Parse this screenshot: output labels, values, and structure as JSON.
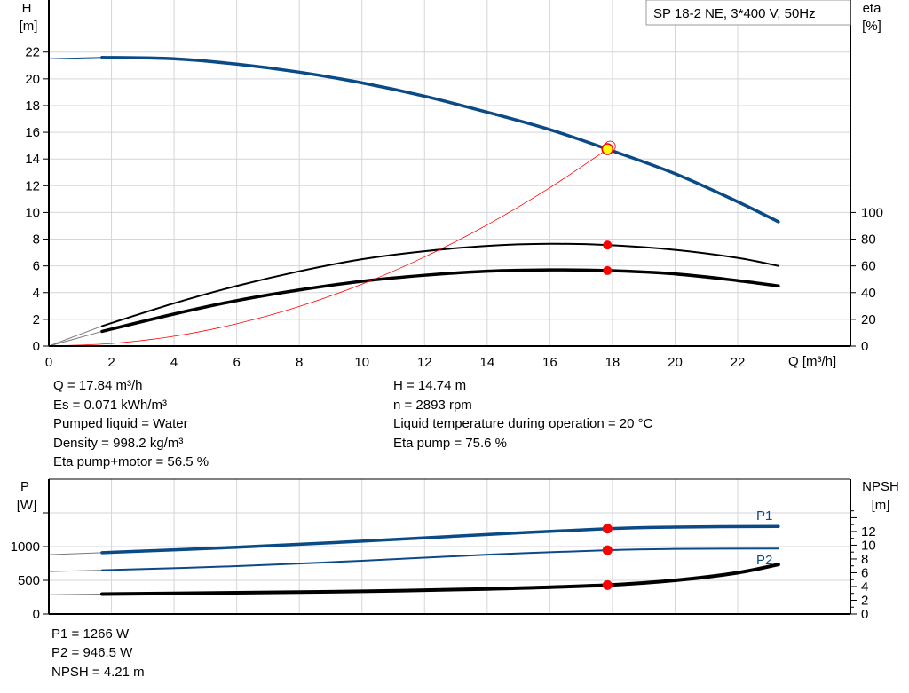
{
  "title": "SP 18-2 NE, 3*400 V, 50Hz",
  "colors": {
    "blue": "#0a4a86",
    "black": "#000000",
    "red": "#ff0000",
    "op_point": "#ffff00"
  },
  "chart_data": [
    {
      "type": "line",
      "ylabel_left": [
        "H",
        "[m]"
      ],
      "ylabel_right": [
        "eta",
        "[%]"
      ],
      "xlabel": "Q [m³/h]",
      "xlim": [
        0,
        25.6
      ],
      "ylim_left": [
        0,
        25.9
      ],
      "ylim_right_scale": "eta 0..100 maps to H 0..10",
      "x_ticks": [
        0,
        2,
        4,
        6,
        8,
        10,
        12,
        14,
        16,
        18,
        20,
        22
      ],
      "y_ticks_left": [
        0,
        2,
        4,
        6,
        8,
        10,
        12,
        14,
        16,
        18,
        20,
        22
      ],
      "y_ticks_right": [
        0,
        20,
        40,
        60,
        80,
        100
      ],
      "grid": true,
      "series": [
        {
          "key": "H",
          "axis": "left",
          "color": "#0a4a86",
          "x": [
            0,
            1.7,
            4,
            6,
            8,
            10,
            12,
            14,
            16,
            17.84,
            20,
            22,
            23.3
          ],
          "y": [
            21.5,
            21.6,
            21.5,
            21.1,
            20.5,
            19.7,
            18.7,
            17.5,
            16.2,
            14.74,
            12.9,
            10.8,
            9.3
          ]
        },
        {
          "key": "eta_pump",
          "axis": "right",
          "color": "#000000",
          "x": [
            0,
            1.7,
            4,
            6,
            8,
            10,
            12,
            14,
            16,
            17.84,
            20,
            22,
            23.3
          ],
          "y": [
            0,
            15,
            32,
            45,
            56,
            65,
            71,
            75,
            76.5,
            75.6,
            72,
            66,
            60
          ]
        },
        {
          "key": "eta_pump_motor",
          "axis": "right",
          "color": "#000000",
          "x": [
            0,
            1.7,
            4,
            6,
            8,
            10,
            12,
            14,
            16,
            17.84,
            20,
            22,
            23.3
          ],
          "y": [
            0,
            11,
            24,
            34,
            42,
            48.5,
            53,
            56,
            57,
            56.5,
            54,
            49,
            45
          ]
        },
        {
          "key": "system",
          "axis": "left",
          "color": "#ff0000",
          "x": [
            0,
            2,
            4,
            6,
            8,
            10,
            12,
            14,
            16,
            17.84
          ],
          "y": [
            0,
            0.19,
            0.74,
            1.67,
            2.96,
            4.63,
            6.67,
            9.07,
            11.85,
            14.74
          ]
        }
      ],
      "operating_point": {
        "q": 17.84,
        "h": 14.74,
        "eta_pump": 75.6,
        "eta_pump_motor": 56.5
      }
    },
    {
      "type": "line",
      "ylabel_left": [
        "P",
        "[W]"
      ],
      "ylabel_right": [
        "NPSH",
        "[m]"
      ],
      "xlim": [
        0,
        25.6
      ],
      "ylim_left": [
        0,
        2000
      ],
      "ylim_right": [
        0,
        19.6
      ],
      "y_ticks_left": [
        0,
        500,
        1000
      ],
      "y_ticks_right": [
        0,
        2,
        4,
        6,
        8,
        10,
        12
      ],
      "grid": true,
      "series": [
        {
          "name": "P1",
          "key": "P1",
          "axis": "left",
          "color": "#0a4a86",
          "x": [
            0,
            1.7,
            6,
            10,
            14,
            17.84,
            20,
            23.3
          ],
          "y": [
            880,
            910,
            990,
            1080,
            1180,
            1266,
            1290,
            1300
          ]
        },
        {
          "name": "P2",
          "key": "P2",
          "axis": "left",
          "color": "#0a4a86",
          "x": [
            0,
            1.7,
            6,
            10,
            14,
            17.84,
            20,
            23.3
          ],
          "y": [
            630,
            650,
            710,
            790,
            880,
            946.5,
            965,
            970
          ]
        },
        {
          "key": "NPSH",
          "axis": "right",
          "color": "#000000",
          "x": [
            0,
            1.7,
            6,
            10,
            14,
            17.84,
            20,
            22,
            23.3
          ],
          "y": [
            2.8,
            2.9,
            3.1,
            3.3,
            3.65,
            4.21,
            4.9,
            6.0,
            7.2
          ]
        }
      ]
    }
  ],
  "info_top": {
    "left": [
      "Q = 17.84 m³/h",
      "Es = 0.071 kWh/m³",
      "Pumped liquid = Water",
      "Density = 998.2 kg/m³",
      "Eta pump+motor = 56.5 %"
    ],
    "right": [
      "H = 14.74 m",
      "n = 2893 rpm",
      "Liquid temperature during operation = 20 °C",
      "Eta pump = 75.6 %"
    ]
  },
  "info_bottom": [
    "P1 = 1266 W",
    "P2 = 946.5 W",
    "NPSH = 4.21 m"
  ]
}
